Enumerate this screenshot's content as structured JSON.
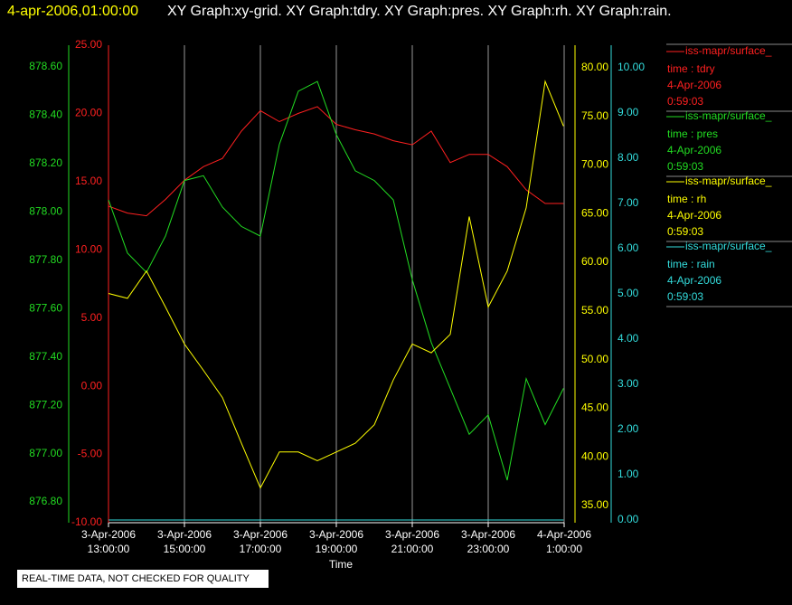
{
  "chart_data": {
    "type": "line",
    "time_label": "4-apr-2006,01:00:00",
    "title": "XY Graph:xy-grid.  XY Graph:tdry.  XY Graph:pres.  XY Graph:rh.  XY Graph:rain.",
    "xlabel": "Time",
    "footer": "REAL-TIME DATA, NOT CHECKED FOR QUALITY",
    "grid": true,
    "xlim": [
      "2006-04-03T13:00:00",
      "2006-04-04T01:00:00"
    ],
    "xticks": [
      {
        "value": "2006-04-03T13:00:00",
        "label": [
          "3-Apr-2006",
          "13:00:00"
        ]
      },
      {
        "value": "2006-04-03T15:00:00",
        "label": [
          "3-Apr-2006",
          "15:00:00"
        ]
      },
      {
        "value": "2006-04-03T17:00:00",
        "label": [
          "3-Apr-2006",
          "17:00:00"
        ]
      },
      {
        "value": "2006-04-03T19:00:00",
        "label": [
          "3-Apr-2006",
          "19:00:00"
        ]
      },
      {
        "value": "2006-04-03T21:00:00",
        "label": [
          "3-Apr-2006",
          "21:00:00"
        ]
      },
      {
        "value": "2006-04-03T23:00:00",
        "label": [
          "3-Apr-2006",
          "23:00:00"
        ]
      },
      {
        "value": "2006-04-04T01:00:00",
        "label": [
          "4-Apr-2006",
          "1:00:00"
        ]
      }
    ],
    "x": [
      "2006-04-03T13:00:00",
      "2006-04-03T13:30:00",
      "2006-04-03T14:00:00",
      "2006-04-03T14:30:00",
      "2006-04-03T15:00:00",
      "2006-04-03T15:30:00",
      "2006-04-03T16:00:00",
      "2006-04-03T16:30:00",
      "2006-04-03T17:00:00",
      "2006-04-03T17:30:00",
      "2006-04-03T18:00:00",
      "2006-04-03T18:30:00",
      "2006-04-03T19:00:00",
      "2006-04-03T19:30:00",
      "2006-04-03T20:00:00",
      "2006-04-03T20:30:00",
      "2006-04-03T21:00:00",
      "2006-04-03T21:30:00",
      "2006-04-03T22:00:00",
      "2006-04-03T22:30:00",
      "2006-04-03T23:00:00",
      "2006-04-03T23:30:00",
      "2006-04-04T00:00:00",
      "2006-04-04T00:30:00",
      "2006-04-04T00:59:00"
    ],
    "yaxes": [
      {
        "color": "#ff2020",
        "ylim": [
          -10,
          25
        ],
        "yticks": [
          {
            "value": -10,
            "label": "-10.00"
          },
          {
            "value": -5,
            "label": "-5.00"
          },
          {
            "value": 0,
            "label": "0.00"
          },
          {
            "value": 5,
            "label": "5.00"
          },
          {
            "value": 10,
            "label": "10.00"
          },
          {
            "value": 15,
            "label": "15.00"
          },
          {
            "value": 20,
            "label": "20.00"
          },
          {
            "value": 25,
            "label": "25.00"
          }
        ]
      },
      {
        "color": "#22dd22",
        "ylim": [
          876.714,
          878.69
        ],
        "yticks": [
          {
            "value": 876.8,
            "label": "876.80"
          },
          {
            "value": 877.0,
            "label": "877.00"
          },
          {
            "value": 877.2,
            "label": "877.20"
          },
          {
            "value": 877.4,
            "label": "877.40"
          },
          {
            "value": 877.6,
            "label": "877.60"
          },
          {
            "value": 877.8,
            "label": "877.80"
          },
          {
            "value": 878.0,
            "label": "878.00"
          },
          {
            "value": 878.2,
            "label": "878.20"
          },
          {
            "value": 878.4,
            "label": "878.40"
          },
          {
            "value": 878.6,
            "label": "878.60"
          }
        ]
      },
      {
        "color": "#ffff00",
        "ylim": [
          33.23,
          82.32
        ],
        "yticks": [
          {
            "value": 35,
            "label": "35.00"
          },
          {
            "value": 40,
            "label": "40.00"
          },
          {
            "value": 45,
            "label": "45.00"
          },
          {
            "value": 50,
            "label": "50.00"
          },
          {
            "value": 55,
            "label": "55.00"
          },
          {
            "value": 60,
            "label": "60.00"
          },
          {
            "value": 65,
            "label": "65.00"
          },
          {
            "value": 70,
            "label": "70.00"
          },
          {
            "value": 75,
            "label": "75.00"
          },
          {
            "value": 80,
            "label": "80.00"
          }
        ]
      },
      {
        "color": "#33dddd",
        "ylim": [
          -0.06,
          10.5
        ],
        "yticks": [
          {
            "value": 0,
            "label": "0.00"
          },
          {
            "value": 1,
            "label": "1.00"
          },
          {
            "value": 2,
            "label": "2.00"
          },
          {
            "value": 3,
            "label": "3.00"
          },
          {
            "value": 4,
            "label": "4.00"
          },
          {
            "value": 5,
            "label": "5.00"
          },
          {
            "value": 6,
            "label": "6.00"
          },
          {
            "value": 7,
            "label": "7.00"
          },
          {
            "value": 8,
            "label": "8.00"
          },
          {
            "value": 9,
            "label": "9.00"
          },
          {
            "value": 10,
            "label": "10.00"
          }
        ]
      }
    ],
    "series": [
      {
        "name": "iss-mapr/surface_",
        "color": "#ff2020",
        "axis": 0,
        "legend_lines": [
          "time : tdry",
          "4-Apr-2006",
          "0:59:03"
        ],
        "values": [
          13.2,
          12.7,
          12.5,
          13.7,
          15.1,
          16.1,
          16.7,
          18.7,
          20.2,
          19.4,
          20.0,
          20.5,
          19.2,
          18.8,
          18.5,
          18.0,
          17.7,
          18.7,
          16.4,
          17.0,
          17.0,
          16.1,
          14.4,
          13.4,
          13.4
        ]
      },
      {
        "name": "iss-mapr/surface_",
        "color": "#22dd22",
        "axis": 1,
        "legend_lines": [
          "time : pres",
          "4-Apr-2006",
          "0:59:03"
        ],
        "values": [
          878.05,
          877.83,
          877.75,
          877.9,
          878.13,
          878.15,
          878.02,
          877.94,
          877.9,
          878.28,
          878.5,
          878.54,
          878.32,
          878.17,
          878.13,
          878.05,
          877.72,
          877.46,
          877.27,
          877.08,
          877.16,
          876.89,
          877.31,
          877.12,
          877.27
        ]
      },
      {
        "name": "iss-mapr/surface_",
        "color": "#ffff00",
        "axis": 2,
        "legend_lines": [
          "time : rh",
          "4-Apr-2006",
          "0:59:03"
        ],
        "values": [
          56.8,
          56.3,
          59.1,
          55.4,
          51.6,
          48.9,
          46.1,
          41.4,
          36.8,
          40.5,
          40.5,
          39.6,
          40.5,
          41.4,
          43.3,
          47.9,
          51.6,
          50.7,
          52.6,
          64.7,
          55.4,
          59.1,
          65.6,
          78.6,
          74.0
        ]
      },
      {
        "name": "iss-mapr/surface_",
        "color": "#33dddd",
        "axis": 3,
        "legend_lines": [
          "time : rain",
          "4-Apr-2006",
          "0:59:03"
        ],
        "values": [
          0,
          0,
          0,
          0,
          0,
          0,
          0,
          0,
          0,
          0,
          0,
          0,
          0,
          0,
          0,
          0,
          0,
          0,
          0,
          0,
          0,
          0,
          0,
          0,
          0
        ]
      }
    ]
  }
}
